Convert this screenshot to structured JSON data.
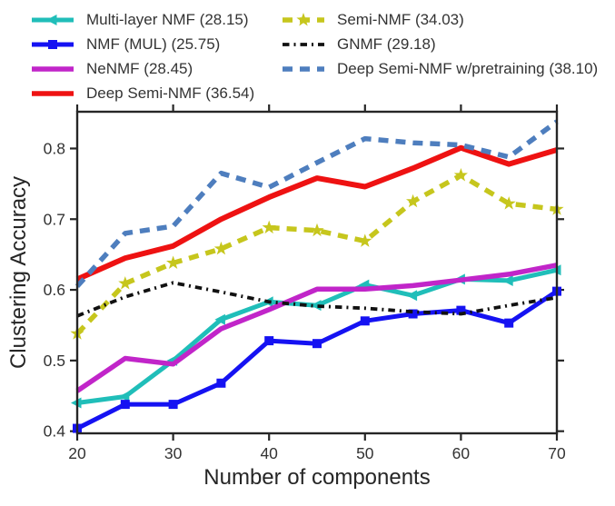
{
  "figure": {
    "kind": "matplotlib-style line chart",
    "background": "#ffffff",
    "axis_color": "#262626"
  },
  "chart_data": {
    "type": "line",
    "title": "",
    "xlabel": "Number of components",
    "ylabel": "Clustering Accuracy",
    "x": [
      20,
      25,
      30,
      35,
      40,
      45,
      50,
      55,
      60,
      65,
      70
    ],
    "xlim": [
      20,
      70
    ],
    "ylim": [
      0.397,
      0.852
    ],
    "xticks": [
      20,
      30,
      40,
      50,
      60,
      70
    ],
    "yticks": [
      "0.4",
      "0.5",
      "0.6",
      "0.7",
      "0.8"
    ],
    "grid": false,
    "legend_position": "above plot, two columns, no frame",
    "legend_columns": [
      [
        0,
        1,
        2,
        3
      ],
      [
        4,
        5,
        6
      ]
    ],
    "series": [
      {
        "name": "multi-layer-nmf",
        "label": "Multi-layer NMF (28.15)",
        "color": "#20BEB9",
        "style": "solid",
        "marker": "tri-left",
        "values": [
          0.44,
          0.449,
          0.5,
          0.558,
          0.583,
          0.578,
          0.607,
          0.592,
          0.615,
          0.613,
          0.628
        ]
      },
      {
        "name": "nmf-mul",
        "label": "NMF (MUL) (25.75)",
        "color": "#1512F2",
        "style": "solid",
        "marker": "square",
        "values": [
          0.404,
          0.438,
          0.438,
          0.468,
          0.528,
          0.524,
          0.556,
          0.566,
          0.571,
          0.553,
          0.598
        ]
      },
      {
        "name": "nenmf",
        "label": "NeNMF (28.45)",
        "color": "#C125C9",
        "style": "solid",
        "marker": "none",
        "values": [
          0.457,
          0.503,
          0.495,
          0.545,
          0.572,
          0.601,
          0.601,
          0.606,
          0.614,
          0.622,
          0.635
        ]
      },
      {
        "name": "deep-semi-nmf",
        "label": "Deep Semi-NMF (36.54)",
        "color": "#EE1212",
        "style": "solid",
        "marker": "none",
        "values": [
          0.615,
          0.645,
          0.662,
          0.7,
          0.731,
          0.758,
          0.746,
          0.772,
          0.801,
          0.778,
          0.798
        ]
      },
      {
        "name": "semi-nmf",
        "label": "Semi-NMF (34.03)",
        "color": "#C6C61D",
        "style": "dashed",
        "marker": "star",
        "values": [
          0.538,
          0.609,
          0.638,
          0.658,
          0.688,
          0.684,
          0.669,
          0.725,
          0.762,
          0.722,
          0.714
        ]
      },
      {
        "name": "gnmf",
        "label": "GNMF (29.18)",
        "color": "#111111",
        "style": "dashdot",
        "marker": "none",
        "values": [
          0.563,
          0.59,
          0.61,
          0.597,
          0.583,
          0.577,
          0.574,
          0.569,
          0.566,
          0.578,
          0.589
        ]
      },
      {
        "name": "deep-semi-nmf-pretraining",
        "label": "Deep Semi-NMF w/pretraining (38.10)",
        "color": "#4E7EBE",
        "style": "dashed",
        "marker": "none",
        "values": [
          0.605,
          0.68,
          0.69,
          0.765,
          0.745,
          0.78,
          0.814,
          0.808,
          0.805,
          0.788,
          0.838
        ]
      }
    ]
  }
}
